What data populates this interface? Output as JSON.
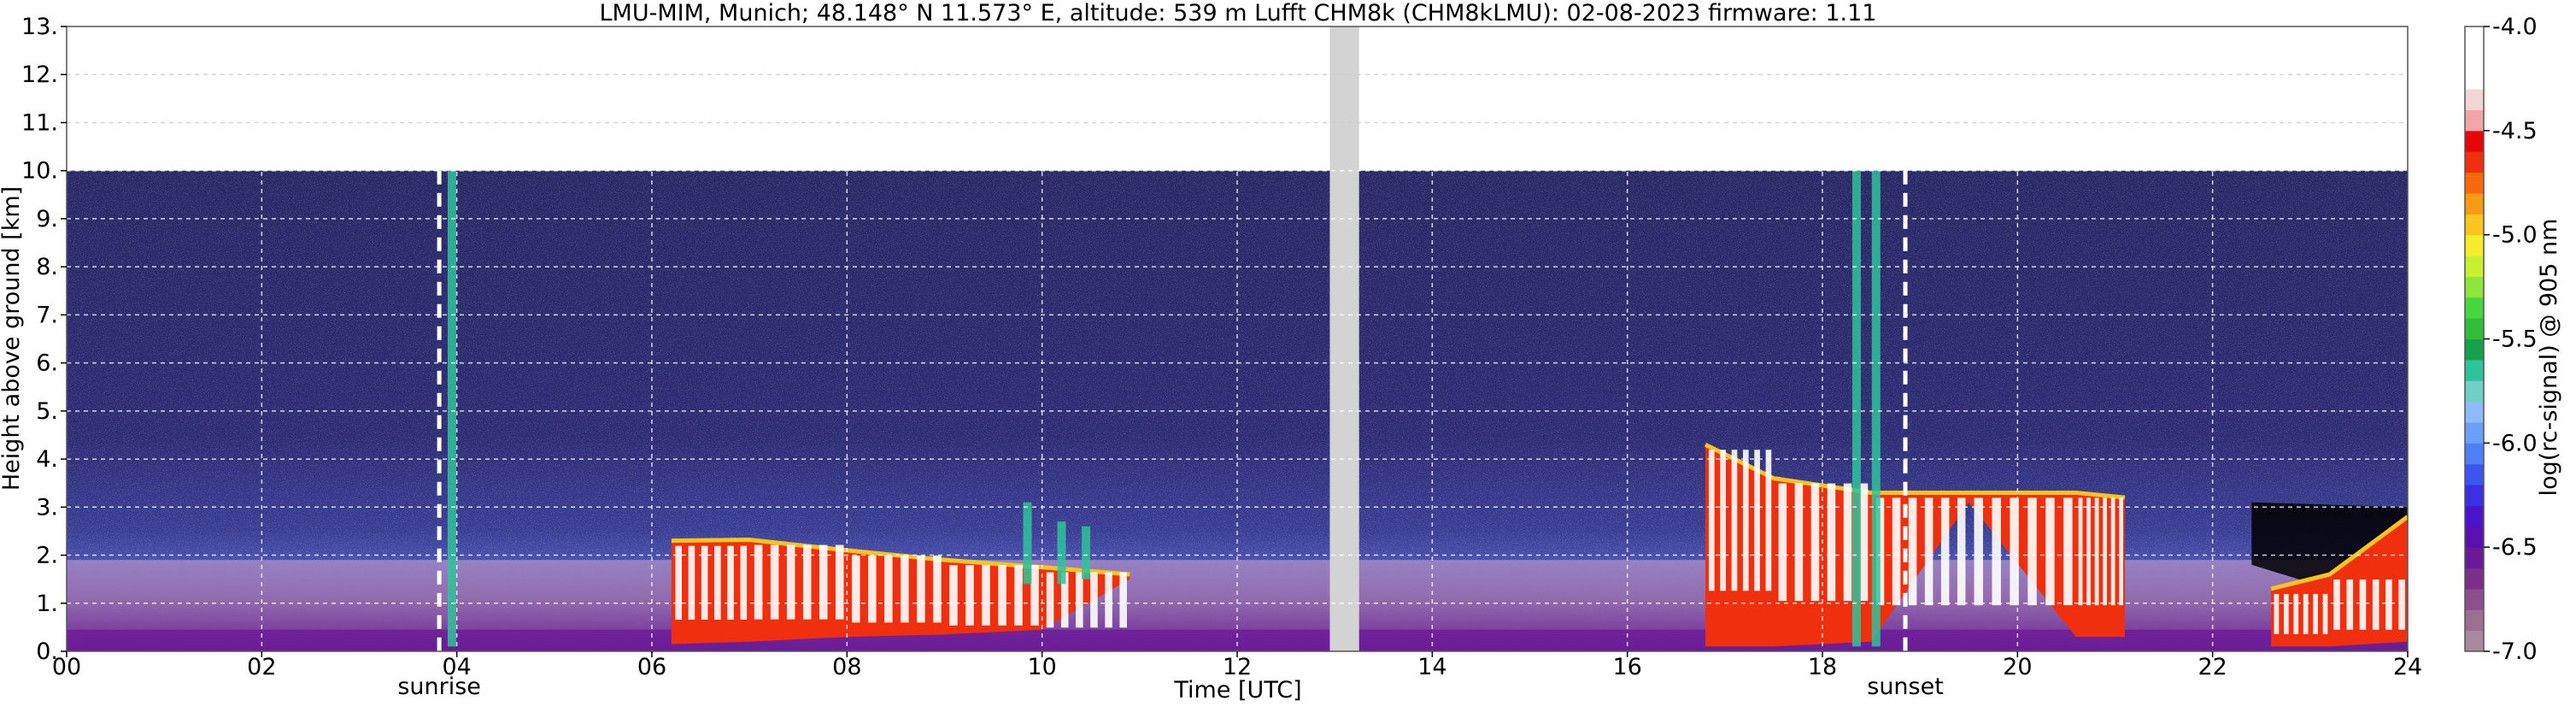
{
  "chart_data": {
    "type": "heatmap",
    "title": "LMU-MIM, Munich; 48.148° N 11.573° E, altitude: 539 m    Lufft CHM8k (CHM8kLMU): 02-08-2023    firmware: 1.11",
    "xlabel": "Time [UTC]",
    "ylabel": "Height above ground [km]",
    "xlim": [
      0,
      24
    ],
    "ylim": [
      0,
      13
    ],
    "x_ticks": [
      {
        "value": 0,
        "label": "00"
      },
      {
        "value": 2,
        "label": "02"
      },
      {
        "value": 4,
        "label": "04"
      },
      {
        "value": 6,
        "label": "06"
      },
      {
        "value": 8,
        "label": "08"
      },
      {
        "value": 10,
        "label": "10"
      },
      {
        "value": 12,
        "label": "12"
      },
      {
        "value": 14,
        "label": "14"
      },
      {
        "value": 16,
        "label": "16"
      },
      {
        "value": 18,
        "label": "18"
      },
      {
        "value": 20,
        "label": "20"
      },
      {
        "value": 22,
        "label": "22"
      },
      {
        "value": 24,
        "label": "24"
      }
    ],
    "y_ticks": [
      {
        "value": 0,
        "label": "0."
      },
      {
        "value": 1,
        "label": "1."
      },
      {
        "value": 2,
        "label": "2."
      },
      {
        "value": 3,
        "label": "3."
      },
      {
        "value": 4,
        "label": "4."
      },
      {
        "value": 5,
        "label": "5."
      },
      {
        "value": 6,
        "label": "6."
      },
      {
        "value": 7,
        "label": "7."
      },
      {
        "value": 8,
        "label": "8."
      },
      {
        "value": 9,
        "label": "9."
      },
      {
        "value": 10,
        "label": "10."
      },
      {
        "value": 11,
        "label": "11."
      },
      {
        "value": 12,
        "label": "12."
      },
      {
        "value": 13,
        "label": "13."
      }
    ],
    "grid": true,
    "data_top_km": 10,
    "data_gap_utc": [
      12.95,
      13.25
    ],
    "events": [
      {
        "time": 3.82,
        "label": "sunrise"
      },
      {
        "time": 18.85,
        "label": "sunset"
      }
    ],
    "colorbar": {
      "label": "log(rc-signal) @ 905 nm",
      "range": [
        -7.0,
        -4.0
      ],
      "ticks": [
        {
          "value": -4.0,
          "label": "-4.0"
        },
        {
          "value": -4.5,
          "label": "-4.5"
        },
        {
          "value": -5.0,
          "label": "-5.0"
        },
        {
          "value": -5.5,
          "label": "-5.5"
        },
        {
          "value": -6.0,
          "label": "-6.0"
        },
        {
          "value": -6.5,
          "label": "-6.5"
        },
        {
          "value": -7.0,
          "label": "-7.0"
        }
      ],
      "colors": [
        "#a9899e",
        "#9c6f93",
        "#8c4e8c",
        "#7b2f8a",
        "#6a1a96",
        "#5a0fb0",
        "#4a13cc",
        "#3b2ee3",
        "#3a55f0",
        "#4f7ff5",
        "#6aa0f8",
        "#8bbcf8",
        "#6fd0c8",
        "#2fc39a",
        "#16a14c",
        "#2fbd3a",
        "#48d640",
        "#8fe53a",
        "#c8ef30",
        "#f5ed2c",
        "#fbc51e",
        "#f99a12",
        "#f7680e",
        "#ef2f0e",
        "#e5060a",
        "#f0a6a6",
        "#f0d6d6",
        "#ffffff",
        "#ffffff",
        "#ffffff"
      ]
    },
    "background_colors": {
      "noise_dark": "#1c1a48",
      "noise_mid": "#3b3b8f",
      "noise_light": "#9a9fe6",
      "boundary_layer": "#8c4e8c",
      "surface_layer": "#6a1a96",
      "cloud_core": "#ffffff",
      "cloud_edge": "#ef2f0e",
      "cloud_rim": "#f7c51e",
      "precip": "#2fc39a",
      "gap": "#d3d3d3",
      "black_region": "#000000"
    },
    "cloud_layers": [
      {
        "name": "low-clouds-morning",
        "base": [
          [
            6.2,
            0.15
          ],
          [
            7,
            0.2
          ],
          [
            8,
            0.3
          ],
          [
            9,
            0.35
          ],
          [
            10,
            0.45
          ],
          [
            10.9,
            1.5
          ]
        ],
        "top": [
          [
            6.2,
            2.3
          ],
          [
            7,
            2.32
          ],
          [
            8,
            2.1
          ],
          [
            9,
            1.9
          ],
          [
            10,
            1.75
          ],
          [
            10.9,
            1.6
          ]
        ]
      },
      {
        "name": "evening-clouds",
        "base": [
          [
            16.8,
            0.1
          ],
          [
            17.5,
            0.1
          ],
          [
            18.5,
            0.2
          ],
          [
            19.5,
            3.1
          ],
          [
            20.6,
            0.3
          ],
          [
            21.1,
            0.3
          ]
        ],
        "top": [
          [
            16.8,
            4.3
          ],
          [
            17.5,
            3.6
          ],
          [
            18.5,
            3.3
          ],
          [
            19.5,
            3.3
          ],
          [
            20.6,
            3.3
          ],
          [
            21.1,
            3.2
          ]
        ]
      },
      {
        "name": "night-clouds",
        "base": [
          [
            22.6,
            0.1
          ],
          [
            23.2,
            0.1
          ],
          [
            24,
            0.2
          ]
        ],
        "top": [
          [
            22.6,
            1.3
          ],
          [
            23.2,
            1.6
          ],
          [
            24,
            2.8
          ]
        ]
      }
    ],
    "precip_streaks": [
      {
        "time": 3.95,
        "from": 0.1,
        "to": 10
      },
      {
        "time": 9.85,
        "from": 1.4,
        "to": 3.1
      },
      {
        "time": 10.2,
        "from": 1.4,
        "to": 2.7
      },
      {
        "time": 10.45,
        "from": 1.5,
        "to": 2.6
      },
      {
        "time": 18.35,
        "from": 0.1,
        "to": 10
      },
      {
        "time": 18.55,
        "from": 0.1,
        "to": 10
      }
    ]
  }
}
